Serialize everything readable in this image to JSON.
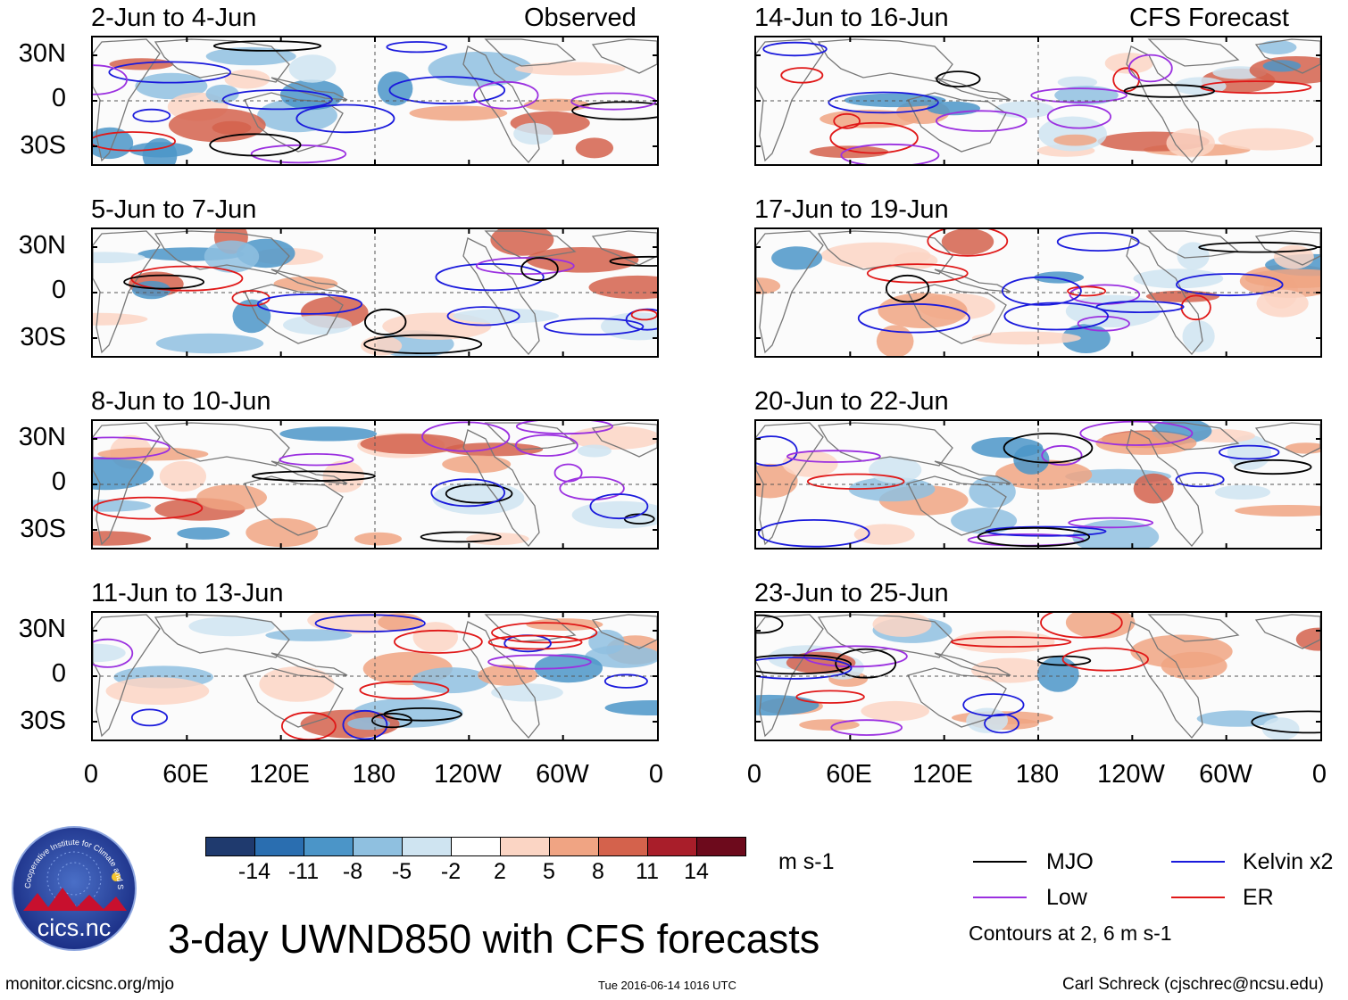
{
  "headers": {
    "left": "Observed",
    "right": "CFS Forecast"
  },
  "panels": [
    {
      "title": "2-Jun to 4-Jun"
    },
    {
      "title": "5-Jun to 7-Jun"
    },
    {
      "title": "8-Jun to 10-Jun"
    },
    {
      "title": "11-Jun to 13-Jun"
    },
    {
      "title": "14-Jun to 16-Jun"
    },
    {
      "title": "17-Jun to 19-Jun"
    },
    {
      "title": "20-Jun to 22-Jun"
    },
    {
      "title": "23-Jun to 25-Jun"
    }
  ],
  "lat_labels": [
    "30N",
    "0",
    "30S"
  ],
  "lon_labels": [
    "0",
    "60E",
    "120E",
    "180",
    "120W",
    "60W",
    "0"
  ],
  "colorbar": {
    "labels": [
      "-14",
      "-11",
      "-8",
      "-5",
      "-2",
      "2",
      "5",
      "8",
      "11",
      "14"
    ],
    "colors": [
      "#1f3a6e",
      "#2a6eb0",
      "#4b95c8",
      "#8fc0e0",
      "#cfe4f1",
      "#ffffff",
      "#fbd5c4",
      "#f0a483",
      "#d4624c",
      "#a91e2a",
      "#6d0a1c"
    ],
    "units": "m s-1"
  },
  "legend": {
    "items": [
      {
        "label": "MJO",
        "color": "#000000"
      },
      {
        "label": "Kelvin x2",
        "color": "#1a1adc"
      },
      {
        "label": "Low",
        "color": "#9b30e0"
      },
      {
        "label": "ER",
        "color": "#e01818"
      }
    ],
    "note": "Contours at 2, 6 m s-1"
  },
  "logo_text": "cics.nc",
  "logo_ring_text": "Cooperative Institute for Climate and Satellites",
  "main_title": "3-day UWND850 with CFS forecasts",
  "footer": {
    "url": "monitor.cicsnc.org/mjo",
    "timestamp": "Tue 2016-06-14 1016 UTC",
    "author": "Carl Schreck (cjschrec@ncsu.edu)"
  }
}
